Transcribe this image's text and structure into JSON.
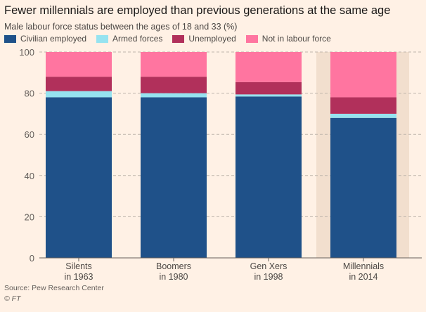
{
  "title": "Fewer millennials are employed than previous generations at the same age",
  "subtitle": "Male labour force status between the ages of 18 and 33 (%)",
  "source": "Source: Pew Research Center",
  "copyright": "© FT",
  "chart_data": {
    "type": "bar",
    "stacked": true,
    "categories": [
      [
        "Silents",
        "in 1963"
      ],
      [
        "Boomers",
        "in 1980"
      ],
      [
        "Gen Xers",
        "in 1998"
      ],
      [
        "Millennials",
        "in 2014"
      ]
    ],
    "highlighted_category": "Millennials in 2014",
    "series": [
      {
        "name": "Civilian employed",
        "color": "#1f5189",
        "values": [
          78,
          78,
          78.4,
          68
        ]
      },
      {
        "name": "Armed forces",
        "color": "#96e3f0",
        "values": [
          3,
          2,
          1,
          2
        ]
      },
      {
        "name": "Unemployed",
        "color": "#b1305b",
        "values": [
          7,
          8,
          6,
          8
        ]
      },
      {
        "name": "Not in labour force",
        "color": "#ff75a0",
        "values": [
          12,
          12,
          14.6,
          22
        ]
      }
    ],
    "ylim": [
      0,
      100
    ],
    "yticks": [
      0,
      20,
      40,
      60,
      80,
      100
    ],
    "grid": true,
    "legend": "top-left"
  }
}
